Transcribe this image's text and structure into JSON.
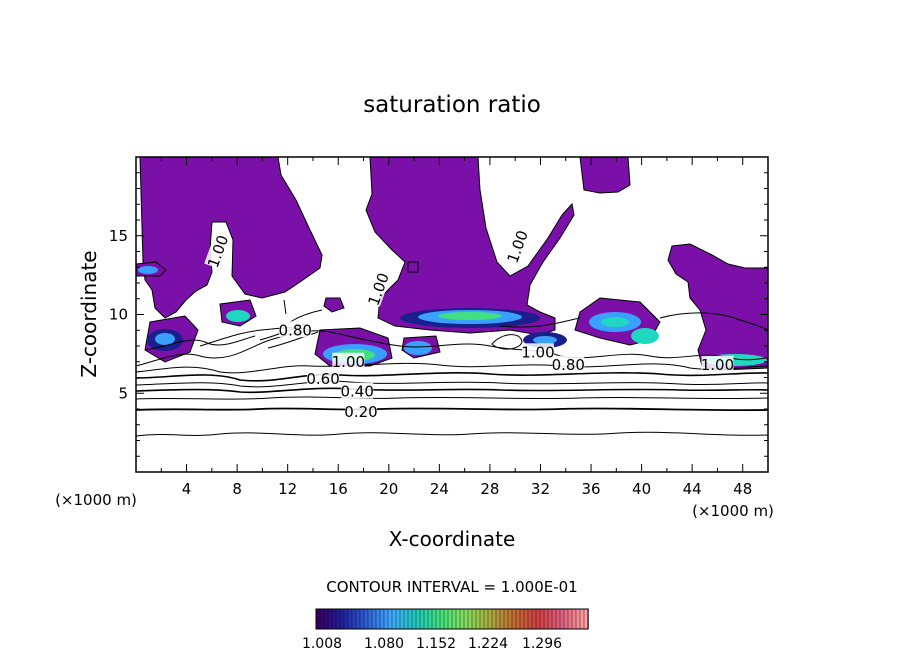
{
  "chart_data": {
    "type": "contour",
    "title": "saturation ratio",
    "xlabel": "X-coordinate",
    "ylabel": "Z-coordinate",
    "x_unit": "(×1000 m)",
    "x_unit_right": "(×1000 m)",
    "xlim": [
      0,
      50
    ],
    "ylim": [
      0,
      20
    ],
    "x_ticks": [
      4,
      8,
      12,
      16,
      20,
      24,
      28,
      32,
      36,
      40,
      44,
      48
    ],
    "y_ticks": [
      5,
      10,
      15
    ],
    "contour_interval_text": "CONTOUR INTERVAL = 1.000E-01",
    "contour_labels": [
      {
        "text": "0.20",
        "x": 17.8,
        "y": 3.8
      },
      {
        "text": "0.40",
        "x": 17.5,
        "y": 5.1
      },
      {
        "text": "0.60",
        "x": 14.8,
        "y": 5.9
      },
      {
        "text": "0.80",
        "x": 12.6,
        "y": 9.0
      },
      {
        "text": "0.80",
        "x": 34.2,
        "y": 6.8
      },
      {
        "text": "1.00",
        "x": 16.8,
        "y": 7.0
      },
      {
        "text": "1.00",
        "x": 31.8,
        "y": 7.6
      },
      {
        "text": "1.00",
        "x": 46.0,
        "y": 6.8
      },
      {
        "text": "1.00",
        "x": 30.2,
        "y": 14.3
      },
      {
        "text": "1.00",
        "x": 6.5,
        "y": 14.0
      },
      {
        "text": "1.00",
        "x": 19.2,
        "y": 11.6
      }
    ],
    "colorbar": {
      "ticks": [
        "1.008",
        "1.080",
        "1.152",
        "1.224",
        "1.296"
      ],
      "colors": [
        "#3a0060",
        "#2020a0",
        "#3060d8",
        "#40a8ff",
        "#20c8c0",
        "#40e080",
        "#80e060",
        "#a8b040",
        "#c07030",
        "#d04040",
        "#e06080",
        "#ffa0a0"
      ]
    },
    "colors": {
      "supersaturated": "#7a10a8",
      "low": "#1b1f8c",
      "mid": "#3aa0ff",
      "cyan": "#20d8c0",
      "green": "#40e080"
    }
  }
}
